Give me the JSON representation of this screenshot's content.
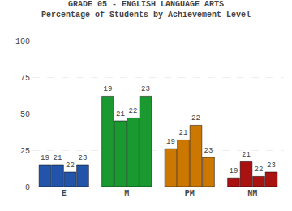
{
  "chart_data": {
    "type": "bar",
    "title": "GRADE 05 - ENGLISH LANGUAGE ARTS",
    "subtitle": "Percentage of Students by Achievement Level",
    "categories": [
      "E",
      "M",
      "PM",
      "NM"
    ],
    "series": [
      {
        "name": "19",
        "values": [
          15,
          62,
          26,
          6
        ],
        "colors": [
          "#2255aa",
          "#1a9930",
          "#cc7700",
          "#aa1111"
        ]
      },
      {
        "name": "21",
        "values": [
          15,
          45,
          32,
          17
        ],
        "colors": [
          "#2255aa",
          "#1a9930",
          "#cc7700",
          "#aa1111"
        ]
      },
      {
        "name": "22",
        "values": [
          10,
          47,
          42,
          7
        ],
        "colors": [
          "#2255aa",
          "#1a9930",
          "#cc7700",
          "#aa1111"
        ]
      },
      {
        "name": "23",
        "values": [
          15,
          62,
          20,
          10
        ],
        "colors": [
          "#2255aa",
          "#1a9930",
          "#cc7700",
          "#aa1111"
        ]
      }
    ],
    "ylim": [
      0,
      100
    ],
    "yticks": [
      0,
      25,
      50,
      75,
      100
    ],
    "grid": true
  }
}
